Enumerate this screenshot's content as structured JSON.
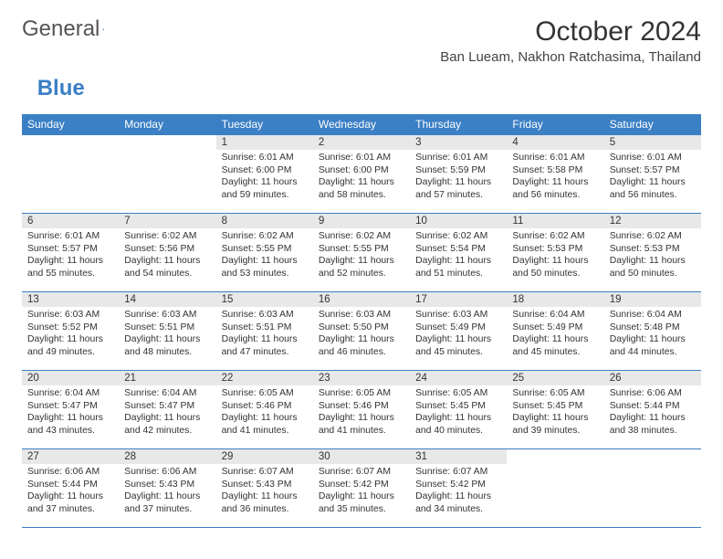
{
  "logo": {
    "text1": "General",
    "text2": "Blue"
  },
  "title": "October 2024",
  "location": "Ban Lueam, Nakhon Ratchasima, Thailand",
  "colors": {
    "header_bg": "#3b7fc4",
    "header_text": "#ffffff",
    "daynum_bg": "#e8e8e8",
    "border": "#3b7fc4",
    "text": "#333333",
    "page_bg": "#ffffff"
  },
  "day_headers": [
    "Sunday",
    "Monday",
    "Tuesday",
    "Wednesday",
    "Thursday",
    "Friday",
    "Saturday"
  ],
  "weeks": [
    [
      {
        "n": "",
        "lines": []
      },
      {
        "n": "",
        "lines": []
      },
      {
        "n": "1",
        "lines": [
          "Sunrise: 6:01 AM",
          "Sunset: 6:00 PM",
          "Daylight: 11 hours",
          "and 59 minutes."
        ]
      },
      {
        "n": "2",
        "lines": [
          "Sunrise: 6:01 AM",
          "Sunset: 6:00 PM",
          "Daylight: 11 hours",
          "and 58 minutes."
        ]
      },
      {
        "n": "3",
        "lines": [
          "Sunrise: 6:01 AM",
          "Sunset: 5:59 PM",
          "Daylight: 11 hours",
          "and 57 minutes."
        ]
      },
      {
        "n": "4",
        "lines": [
          "Sunrise: 6:01 AM",
          "Sunset: 5:58 PM",
          "Daylight: 11 hours",
          "and 56 minutes."
        ]
      },
      {
        "n": "5",
        "lines": [
          "Sunrise: 6:01 AM",
          "Sunset: 5:57 PM",
          "Daylight: 11 hours",
          "and 56 minutes."
        ]
      }
    ],
    [
      {
        "n": "6",
        "lines": [
          "Sunrise: 6:01 AM",
          "Sunset: 5:57 PM",
          "Daylight: 11 hours",
          "and 55 minutes."
        ]
      },
      {
        "n": "7",
        "lines": [
          "Sunrise: 6:02 AM",
          "Sunset: 5:56 PM",
          "Daylight: 11 hours",
          "and 54 minutes."
        ]
      },
      {
        "n": "8",
        "lines": [
          "Sunrise: 6:02 AM",
          "Sunset: 5:55 PM",
          "Daylight: 11 hours",
          "and 53 minutes."
        ]
      },
      {
        "n": "9",
        "lines": [
          "Sunrise: 6:02 AM",
          "Sunset: 5:55 PM",
          "Daylight: 11 hours",
          "and 52 minutes."
        ]
      },
      {
        "n": "10",
        "lines": [
          "Sunrise: 6:02 AM",
          "Sunset: 5:54 PM",
          "Daylight: 11 hours",
          "and 51 minutes."
        ]
      },
      {
        "n": "11",
        "lines": [
          "Sunrise: 6:02 AM",
          "Sunset: 5:53 PM",
          "Daylight: 11 hours",
          "and 50 minutes."
        ]
      },
      {
        "n": "12",
        "lines": [
          "Sunrise: 6:02 AM",
          "Sunset: 5:53 PM",
          "Daylight: 11 hours",
          "and 50 minutes."
        ]
      }
    ],
    [
      {
        "n": "13",
        "lines": [
          "Sunrise: 6:03 AM",
          "Sunset: 5:52 PM",
          "Daylight: 11 hours",
          "and 49 minutes."
        ]
      },
      {
        "n": "14",
        "lines": [
          "Sunrise: 6:03 AM",
          "Sunset: 5:51 PM",
          "Daylight: 11 hours",
          "and 48 minutes."
        ]
      },
      {
        "n": "15",
        "lines": [
          "Sunrise: 6:03 AM",
          "Sunset: 5:51 PM",
          "Daylight: 11 hours",
          "and 47 minutes."
        ]
      },
      {
        "n": "16",
        "lines": [
          "Sunrise: 6:03 AM",
          "Sunset: 5:50 PM",
          "Daylight: 11 hours",
          "and 46 minutes."
        ]
      },
      {
        "n": "17",
        "lines": [
          "Sunrise: 6:03 AM",
          "Sunset: 5:49 PM",
          "Daylight: 11 hours",
          "and 45 minutes."
        ]
      },
      {
        "n": "18",
        "lines": [
          "Sunrise: 6:04 AM",
          "Sunset: 5:49 PM",
          "Daylight: 11 hours",
          "and 45 minutes."
        ]
      },
      {
        "n": "19",
        "lines": [
          "Sunrise: 6:04 AM",
          "Sunset: 5:48 PM",
          "Daylight: 11 hours",
          "and 44 minutes."
        ]
      }
    ],
    [
      {
        "n": "20",
        "lines": [
          "Sunrise: 6:04 AM",
          "Sunset: 5:47 PM",
          "Daylight: 11 hours",
          "and 43 minutes."
        ]
      },
      {
        "n": "21",
        "lines": [
          "Sunrise: 6:04 AM",
          "Sunset: 5:47 PM",
          "Daylight: 11 hours",
          "and 42 minutes."
        ]
      },
      {
        "n": "22",
        "lines": [
          "Sunrise: 6:05 AM",
          "Sunset: 5:46 PM",
          "Daylight: 11 hours",
          "and 41 minutes."
        ]
      },
      {
        "n": "23",
        "lines": [
          "Sunrise: 6:05 AM",
          "Sunset: 5:46 PM",
          "Daylight: 11 hours",
          "and 41 minutes."
        ]
      },
      {
        "n": "24",
        "lines": [
          "Sunrise: 6:05 AM",
          "Sunset: 5:45 PM",
          "Daylight: 11 hours",
          "and 40 minutes."
        ]
      },
      {
        "n": "25",
        "lines": [
          "Sunrise: 6:05 AM",
          "Sunset: 5:45 PM",
          "Daylight: 11 hours",
          "and 39 minutes."
        ]
      },
      {
        "n": "26",
        "lines": [
          "Sunrise: 6:06 AM",
          "Sunset: 5:44 PM",
          "Daylight: 11 hours",
          "and 38 minutes."
        ]
      }
    ],
    [
      {
        "n": "27",
        "lines": [
          "Sunrise: 6:06 AM",
          "Sunset: 5:44 PM",
          "Daylight: 11 hours",
          "and 37 minutes."
        ]
      },
      {
        "n": "28",
        "lines": [
          "Sunrise: 6:06 AM",
          "Sunset: 5:43 PM",
          "Daylight: 11 hours",
          "and 37 minutes."
        ]
      },
      {
        "n": "29",
        "lines": [
          "Sunrise: 6:07 AM",
          "Sunset: 5:43 PM",
          "Daylight: 11 hours",
          "and 36 minutes."
        ]
      },
      {
        "n": "30",
        "lines": [
          "Sunrise: 6:07 AM",
          "Sunset: 5:42 PM",
          "Daylight: 11 hours",
          "and 35 minutes."
        ]
      },
      {
        "n": "31",
        "lines": [
          "Sunrise: 6:07 AM",
          "Sunset: 5:42 PM",
          "Daylight: 11 hours",
          "and 34 minutes."
        ]
      },
      {
        "n": "",
        "lines": []
      },
      {
        "n": "",
        "lines": []
      }
    ]
  ]
}
